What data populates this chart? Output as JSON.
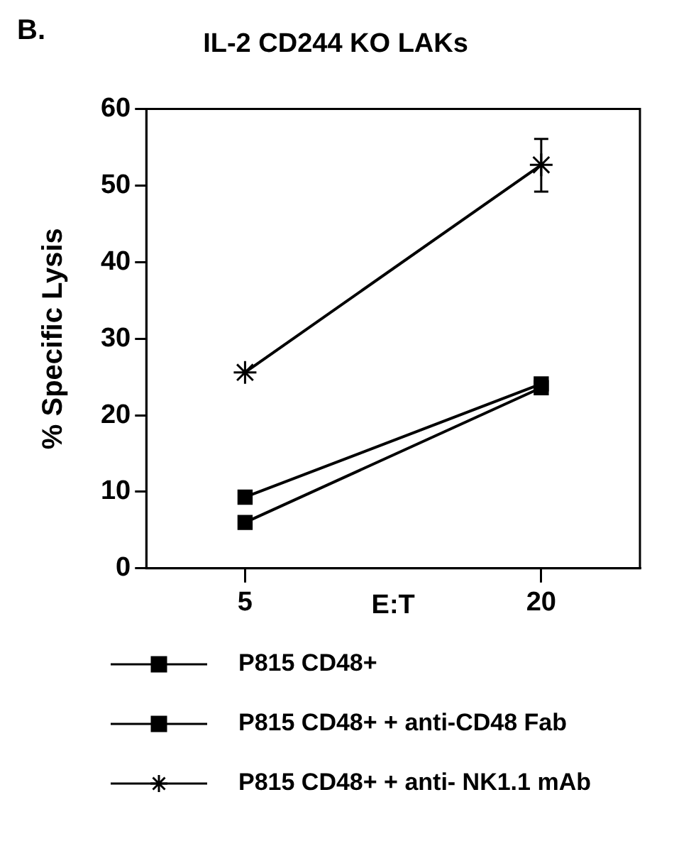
{
  "chart_data": {
    "type": "line",
    "title": "IL-2 CD244 KO LAKs",
    "xlabel": "E:T",
    "ylabel": "% Specific Lysis",
    "annotations": [
      "B."
    ],
    "x": [
      5,
      20
    ],
    "xlim": [
      0,
      25
    ],
    "xticks": [
      5,
      20
    ],
    "ylim": [
      0,
      60
    ],
    "yticks": [
      0,
      10,
      20,
      30,
      40,
      50,
      60
    ],
    "grid": false,
    "legend": "bottom",
    "line_style": "solid",
    "series": [
      {
        "name": "P815 CD48+",
        "color": "#000000",
        "marker": "square",
        "values": [
          6.0,
          23.6
        ]
      },
      {
        "name": "P815 CD48+ + anti-CD48 Fab",
        "color": "#000000",
        "marker": "square",
        "values": [
          9.3,
          24.1
        ]
      },
      {
        "name": "P815 CD48+ + anti- NK1.1 mAb",
        "color": "#000000",
        "marker": "cross",
        "values": [
          25.6,
          52.7
        ],
        "errors": [
          null,
          [
            49.2,
            56.1
          ]
        ]
      }
    ]
  }
}
